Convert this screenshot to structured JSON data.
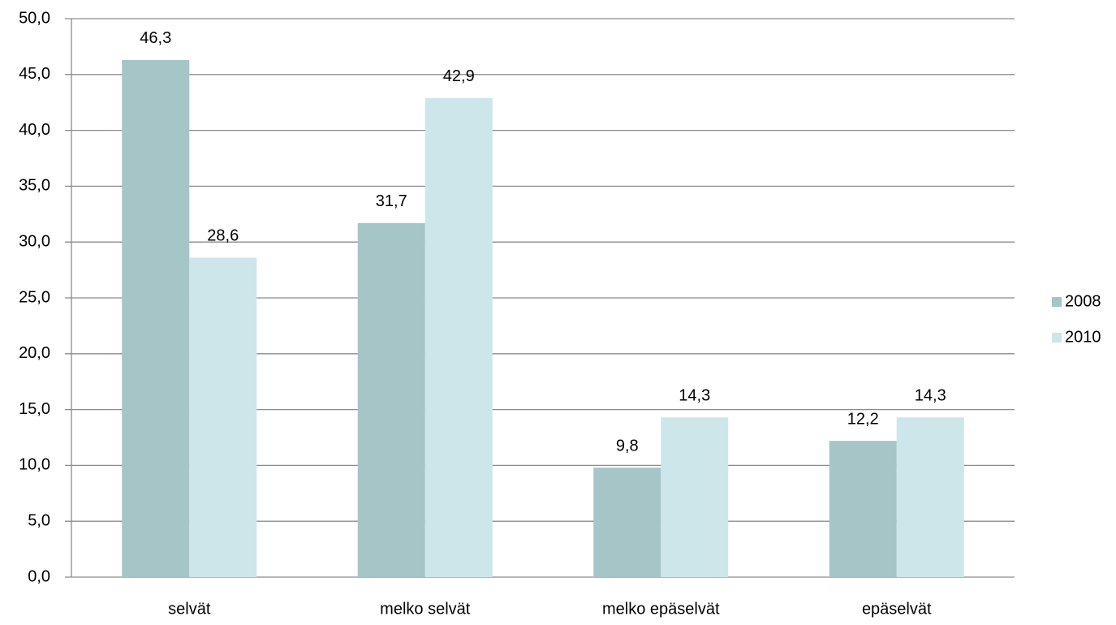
{
  "chart_data": {
    "type": "bar",
    "categories": [
      "selvät",
      "melko selvät",
      "melko epäselvät",
      "epäselvät"
    ],
    "series": [
      {
        "name": "2008",
        "color": "#a5c5c6",
        "values": [
          46.3,
          31.7,
          9.8,
          12.2
        ],
        "value_labels": [
          "46,3",
          "31,7",
          "9,8",
          "12,2"
        ]
      },
      {
        "name": "2010",
        "color": "#cde6ea",
        "values": [
          28.6,
          42.9,
          14.3,
          14.3
        ],
        "value_labels": [
          "28,6",
          "42,9",
          "14,3",
          "14,3"
        ]
      }
    ],
    "ylim": [
      0,
      50
    ],
    "yticks": [
      {
        "value": 0,
        "label": "0,0"
      },
      {
        "value": 5,
        "label": "5,0"
      },
      {
        "value": 10,
        "label": "10,0"
      },
      {
        "value": 15,
        "label": "15,0"
      },
      {
        "value": 20,
        "label": "20,0"
      },
      {
        "value": 25,
        "label": "25,0"
      },
      {
        "value": 30,
        "label": "30,0"
      },
      {
        "value": 35,
        "label": "35,0"
      },
      {
        "value": 40,
        "label": "40,0"
      },
      {
        "value": 45,
        "label": "45,0"
      },
      {
        "value": 50,
        "label": "50,0"
      }
    ],
    "grid": true,
    "legend": "right"
  }
}
